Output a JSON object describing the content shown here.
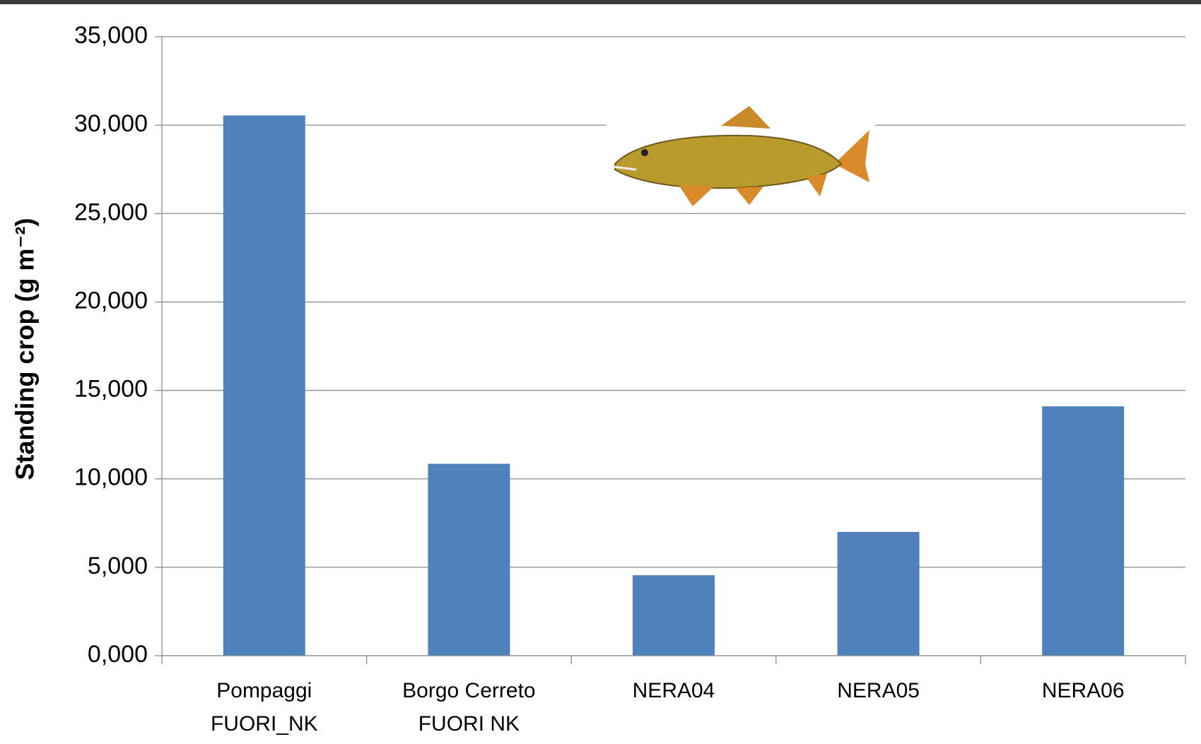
{
  "chart_data": {
    "type": "bar",
    "y_axis_label": "Standing crop (g m⁻²)",
    "categories": [
      "Pompaggi\nFUORI_NK",
      "Borgo Cerreto\nFUORI NK",
      "NERA04",
      "NERA05",
      "NERA06"
    ],
    "values": [
      30550,
      10850,
      4550,
      7000,
      14100
    ],
    "color": "#4f81bd",
    "ylim": [
      0,
      35000
    ],
    "yticks": [
      {
        "value": 0,
        "label": "0,000"
      },
      {
        "value": 5000,
        "label": "5,000"
      },
      {
        "value": 10000,
        "label": "10,000"
      },
      {
        "value": 15000,
        "label": "15,000"
      },
      {
        "value": 20000,
        "label": "20,000"
      },
      {
        "value": 25000,
        "label": "25,000"
      },
      {
        "value": 30000,
        "label": "30,000"
      },
      {
        "value": 35000,
        "label": "35,000"
      }
    ],
    "grid": true
  }
}
